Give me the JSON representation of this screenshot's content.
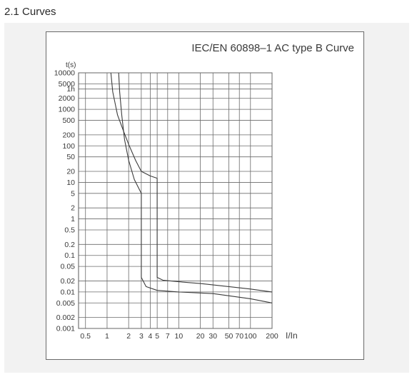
{
  "section": {
    "title": "2.1 Curves"
  },
  "chart_data": {
    "type": "line",
    "title": "IEC/EN 60898–1 AC type B Curve",
    "ylabel": "t(s)",
    "xlabel": "I/In",
    "x_scale": "log",
    "y_scale": "log",
    "xlim": [
      0.4,
      200
    ],
    "ylim": [
      0.001,
      10000
    ],
    "x_ticks": [
      {
        "value": 0.5,
        "label": "0.5"
      },
      {
        "value": 1,
        "label": "1"
      },
      {
        "value": 2,
        "label": "2"
      },
      {
        "value": 3,
        "label": "3"
      },
      {
        "value": 4,
        "label": "4"
      },
      {
        "value": 5,
        "label": "5"
      },
      {
        "value": 7,
        "label": "7"
      },
      {
        "value": 10,
        "label": "10"
      },
      {
        "value": 20,
        "label": "20"
      },
      {
        "value": 30,
        "label": "30"
      },
      {
        "value": 50,
        "label": "50"
      },
      {
        "value": 70,
        "label": "70"
      },
      {
        "value": 100,
        "label": "100"
      },
      {
        "value": 200,
        "label": "200"
      }
    ],
    "y_ticks": [
      {
        "value": 10000,
        "label": "10000"
      },
      {
        "value": 5000,
        "label": "5000"
      },
      {
        "value": 3600,
        "label": "1h"
      },
      {
        "value": 2000,
        "label": "2000"
      },
      {
        "value": 1000,
        "label": "1000"
      },
      {
        "value": 500,
        "label": "500"
      },
      {
        "value": 200,
        "label": "200"
      },
      {
        "value": 100,
        "label": "100"
      },
      {
        "value": 50,
        "label": "50"
      },
      {
        "value": 20,
        "label": "20"
      },
      {
        "value": 10,
        "label": "10"
      },
      {
        "value": 5,
        "label": "5"
      },
      {
        "value": 2,
        "label": "2"
      },
      {
        "value": 1,
        "label": "1"
      },
      {
        "value": 0.5,
        "label": "0.5"
      },
      {
        "value": 0.2,
        "label": "0.2"
      },
      {
        "value": 0.1,
        "label": "0.1"
      },
      {
        "value": 0.05,
        "label": "0.05"
      },
      {
        "value": 0.02,
        "label": "0.02"
      },
      {
        "value": 0.01,
        "label": "0.01"
      },
      {
        "value": 0.005,
        "label": "0.005"
      },
      {
        "value": 0.002,
        "label": "0.002"
      },
      {
        "value": 0.001,
        "label": "0.001"
      }
    ],
    "grid": true,
    "series": [
      {
        "points": [
          [
            1.13,
            10000
          ],
          [
            1.2,
            3000
          ],
          [
            1.4,
            700
          ],
          [
            1.7,
            250
          ],
          [
            2.0,
            110
          ],
          [
            2.5,
            40
          ],
          [
            3.0,
            20
          ],
          [
            4.0,
            15
          ],
          [
            5.0,
            13
          ],
          [
            5.0,
            0.025
          ],
          [
            6.0,
            0.021
          ],
          [
            10,
            0.019
          ],
          [
            20,
            0.017
          ],
          [
            50,
            0.014
          ],
          [
            100,
            0.012
          ],
          [
            200,
            0.01
          ]
        ]
      },
      {
        "points": [
          [
            1.45,
            10000
          ],
          [
            1.5,
            3000
          ],
          [
            1.6,
            700
          ],
          [
            1.75,
            150
          ],
          [
            2.0,
            40
          ],
          [
            2.4,
            12
          ],
          [
            3.0,
            5
          ],
          [
            3.0,
            0.025
          ],
          [
            3.5,
            0.014
          ],
          [
            5,
            0.011
          ],
          [
            10,
            0.01
          ],
          [
            30,
            0.009
          ],
          [
            100,
            0.0065
          ],
          [
            200,
            0.005
          ]
        ]
      }
    ]
  }
}
